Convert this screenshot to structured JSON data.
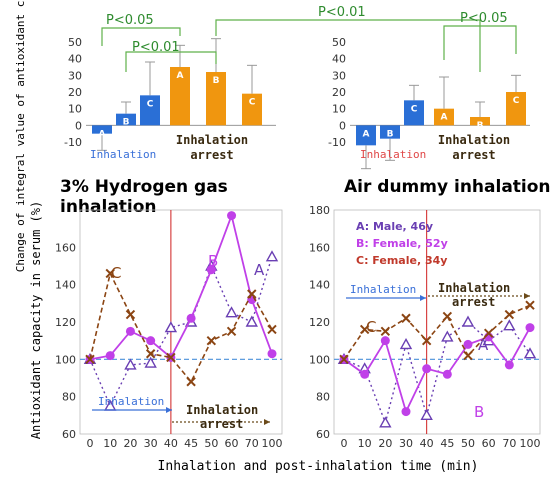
{
  "colors": {
    "hydrogen_bar": "#2a6fd6",
    "arrest_bar": "#f0960f",
    "bracket": "#5fb04a",
    "significance_text": "#2e8b2e",
    "inhalation_label": "#3a70d8",
    "air_inhalation_label": "#e04848",
    "series_a": "#6a3fb3",
    "series_b": "#c040e8",
    "series_c": "#8b4513",
    "baseline": "#4a90d9",
    "divider": "#d02020"
  },
  "figure": {
    "bar_ylabel": "Change of integral value of antioxidant capacity (%)",
    "line_ylabel": "Antioxidant capacity in serum (%)",
    "xlabel": "Inhalation and post-inhalation time (min)",
    "left_title": "3% Hydrogen gas inhalation",
    "right_title": "Air dummy inhalation",
    "inhalation": "Inhalation",
    "inhalation_arrest": "Inhalation arrest",
    "sig": [
      "P<0.05",
      "P<0.01",
      "P<0.01",
      "P<0.05"
    ],
    "legend": [
      "A: Male, 46y",
      "B: Female, 52y",
      "C: Female, 34y"
    ]
  },
  "chart_data": [
    {
      "type": "bar",
      "panel": "hydrogen",
      "categories": [
        "A",
        "B",
        "C",
        "A",
        "B",
        "C"
      ],
      "phase": [
        "Inhalation",
        "Inhalation",
        "Inhalation",
        "Inhalation arrest",
        "Inhalation arrest",
        "Inhalation arrest"
      ],
      "values": [
        -5,
        7,
        18,
        35,
        32,
        19
      ],
      "error": [
        10,
        7,
        20,
        13,
        20,
        17
      ],
      "ylim": [
        -10,
        50
      ],
      "yticks": [
        -10,
        0,
        10,
        20,
        30,
        40,
        50
      ]
    },
    {
      "type": "bar",
      "panel": "air",
      "categories": [
        "A",
        "B",
        "C",
        "A",
        "B",
        "C"
      ],
      "phase": [
        "Inhalation",
        "Inhalation",
        "Inhalation",
        "Inhalation arrest",
        "Inhalation arrest",
        "Inhalation arrest"
      ],
      "values": [
        -12,
        -8,
        15,
        10,
        5,
        20
      ],
      "error": [
        14,
        13,
        9,
        19,
        9,
        10
      ],
      "ylim": [
        -10,
        50
      ],
      "yticks": [
        -10,
        0,
        10,
        20,
        30,
        40,
        50
      ]
    },
    {
      "type": "line",
      "panel": "hydrogen",
      "x": [
        0,
        10,
        20,
        30,
        40,
        45,
        50,
        60,
        70,
        100
      ],
      "xlim": [
        0,
        100
      ],
      "ylim": [
        60,
        180
      ],
      "yticks": [
        60,
        80,
        100,
        120,
        140,
        160
      ],
      "series": [
        {
          "name": "A",
          "values": [
            100,
            75,
            97,
            98,
            117,
            120,
            150,
            125,
            120,
            155
          ]
        },
        {
          "name": "B",
          "values": [
            100,
            102,
            115,
            110,
            101,
            122,
            148,
            177,
            132,
            103
          ]
        },
        {
          "name": "C",
          "values": [
            100,
            146,
            124,
            103,
            101,
            88,
            110,
            115,
            135,
            116
          ]
        }
      ]
    },
    {
      "type": "line",
      "panel": "air",
      "x": [
        0,
        10,
        20,
        30,
        40,
        45,
        50,
        60,
        70,
        100
      ],
      "xlim": [
        0,
        100
      ],
      "ylim": [
        60,
        180
      ],
      "yticks": [
        60,
        80,
        100,
        120,
        140,
        160,
        180
      ],
      "series": [
        {
          "name": "A",
          "values": [
            100,
            95,
            66,
            108,
            70,
            112,
            120,
            110,
            118,
            103
          ]
        },
        {
          "name": "B",
          "values": [
            100,
            92,
            110,
            72,
            95,
            92,
            108,
            112,
            97,
            117
          ]
        },
        {
          "name": "C",
          "values": [
            100,
            116,
            115,
            122,
            110,
            123,
            102,
            114,
            124,
            129
          ]
        }
      ]
    }
  ]
}
